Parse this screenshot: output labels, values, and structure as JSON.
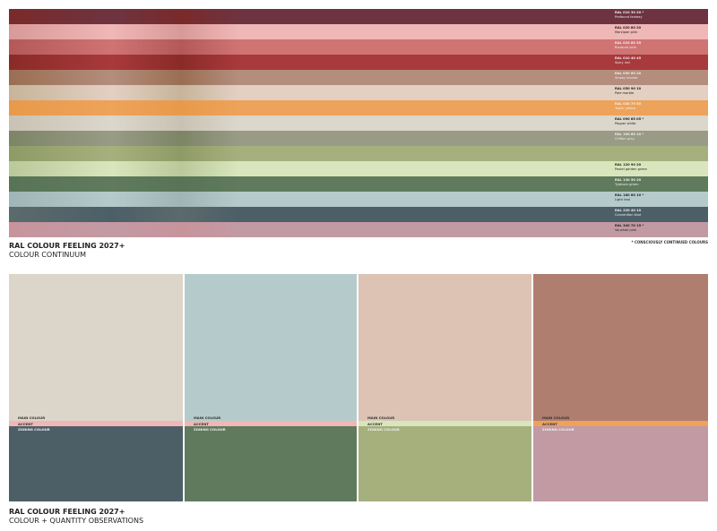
{
  "continuum": {
    "rows": [
      {
        "code": "RAL 010 30 20 *",
        "name": "Profound fantasy",
        "color": "#6e3340",
        "photo": "#7a2a2a",
        "dark": true
      },
      {
        "code": "RAL 020 80 20",
        "name": "Marzipan pink",
        "color": "#f0b7b7",
        "photo": "#d89a98",
        "dark": false
      },
      {
        "code": "RAL 020 60 35",
        "name": "Bouquet pink",
        "color": "#cf7373",
        "photo": "#b4595a",
        "dark": true
      },
      {
        "code": "RAL 010 40 45",
        "name": "Spicy red",
        "color": "#a8393c",
        "photo": "#8a2b28",
        "dark": true
      },
      {
        "code": "RAL 050 60 20",
        "name": "Smoky blonde",
        "color": "#b48d7c",
        "photo": "#9a6e52",
        "dark": true
      },
      {
        "code": "RAL 050 90 10",
        "name": "Pale marble",
        "color": "#e3d0c3",
        "photo": "#c7b49a",
        "dark": false
      },
      {
        "code": "RAL 040 70 50",
        "name": "Tropic yellow",
        "color": "#eea35a",
        "photo": "#e89a4a",
        "dark": true
      },
      {
        "code": "RAL 090 85 05 *",
        "name": "Pepper white",
        "color": "#dcd7cb",
        "photo": "#c9c2b4",
        "dark": false
      },
      {
        "code": "RAL 100 60 10 *",
        "name": "Chiffon grey",
        "color": "#999b86",
        "photo": "#7d8566",
        "dark": true
      },
      {
        "code": "",
        "name": "",
        "color": "#a6b07d",
        "photo": "#8f9b66",
        "dark": false
      },
      {
        "code": "RAL 120 90 20",
        "name": "Pastel garden green",
        "color": "#d9e6bd",
        "photo": "#b9c99a",
        "dark": false
      },
      {
        "code": "RAL 130 50 20",
        "name": "Typhoon green",
        "color": "#5f7a5c",
        "photo": "#587457",
        "dark": true
      },
      {
        "code": "RAL 180 80 10 *",
        "name": "Light teal",
        "color": "#b5cbcb",
        "photo": "#9fb5b6",
        "dark": false
      },
      {
        "code": "RAL 220 40 10",
        "name": "Convention blue",
        "color": "#4c5f67",
        "photo": "#5b6a6c",
        "dark": true
      },
      {
        "code": "RAL 340 70 15 *",
        "name": "Vauxhall pink",
        "color": "#c29aa4",
        "photo": "#c7949c",
        "dark": false
      }
    ],
    "note": "* CONSCIOUSLY CONTINUED COLOURS",
    "title": "RAL COLOUR FEELING 2027+",
    "subtitle": "COLOUR CONTINUUM"
  },
  "observations": {
    "labels": {
      "main": "MAIN COLOUR",
      "accent": "ACCENT",
      "zoning": "ZONING COLOUR"
    },
    "panels": [
      {
        "main": "#dcd5c9",
        "accent": "#f1b6b6",
        "zoning": "#4c5f67"
      },
      {
        "main": "#b5cbcb",
        "accent": "#f1b6b6",
        "zoning": "#5f7a5c"
      },
      {
        "main": "#dcc3b4",
        "accent": "#d9e6bd",
        "zoning": "#a6b07d"
      },
      {
        "main": "#b07e6f",
        "accent": "#eea35a",
        "zoning": "#c29aa4"
      }
    ],
    "title": "RAL COLOUR FEELING 2027+",
    "subtitle": "COLOUR + QUANTITY OBSERVATIONS"
  }
}
